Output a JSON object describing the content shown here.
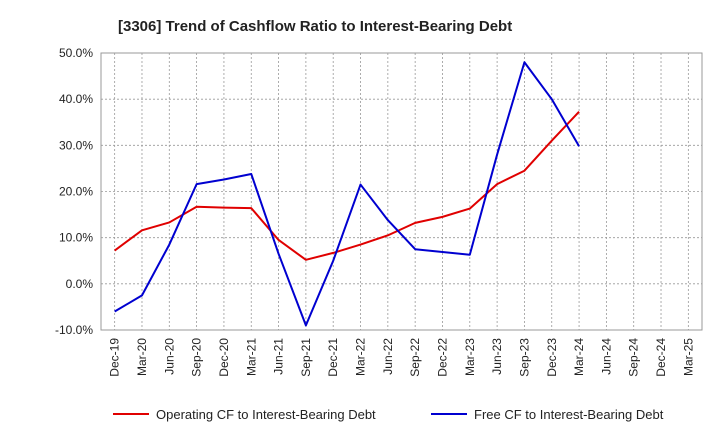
{
  "chart_data": {
    "type": "line",
    "title": "[3306]  Trend of Cashflow Ratio to Interest-Bearing Debt",
    "xlabel": "",
    "ylabel": "",
    "categories": [
      "Dec-19",
      "Mar-20",
      "Jun-20",
      "Sep-20",
      "Dec-20",
      "Mar-21",
      "Jun-21",
      "Sep-21",
      "Dec-21",
      "Mar-22",
      "Jun-22",
      "Sep-22",
      "Dec-22",
      "Mar-23",
      "Jun-23",
      "Sep-23",
      "Dec-23",
      "Mar-24",
      "Jun-24",
      "Sep-24",
      "Dec-24",
      "Mar-25"
    ],
    "ylim": [
      -10,
      50
    ],
    "yticks": [
      -10,
      0,
      10,
      20,
      30,
      40,
      50
    ],
    "ytick_labels": [
      "-10.0%",
      "0.0%",
      "10.0%",
      "20.0%",
      "30.0%",
      "40.0%",
      "50.0%"
    ],
    "grid": true,
    "legend_position": "bottom",
    "series": [
      {
        "name": "Operating CF to Interest-Bearing Debt",
        "color": "#e00000",
        "values": [
          7.2,
          11.6,
          13.3,
          16.7,
          16.5,
          16.4,
          9.5,
          5.2,
          6.7,
          8.5,
          10.5,
          13.2,
          14.5,
          16.3,
          21.6,
          24.5,
          31.0,
          37.3,
          null,
          null,
          null,
          null
        ]
      },
      {
        "name": "Free CF to Interest-Bearing Debt",
        "color": "#0000d0",
        "values": [
          -6.0,
          -2.5,
          8.5,
          21.6,
          22.6,
          23.8,
          6.5,
          -9.0,
          5.0,
          21.5,
          13.8,
          7.5,
          6.9,
          6.3,
          28.0,
          48.0,
          40.0,
          29.8,
          null,
          null,
          null,
          null
        ]
      }
    ]
  }
}
